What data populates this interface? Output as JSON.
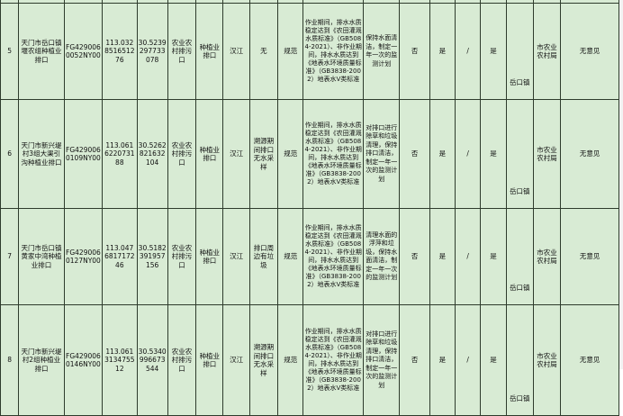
{
  "colors": {
    "cell_background": "#d8ebd4",
    "grid_border": "#2e3b2c",
    "text": "#101010"
  },
  "table": {
    "description_of_columns": [
      {
        "key": "seq"
      },
      {
        "key": "outfall-name"
      },
      {
        "key": "outfall-code"
      },
      {
        "key": "longitude"
      },
      {
        "key": "latitude"
      },
      {
        "key": "outfall-type"
      },
      {
        "key": "outfall-category"
      },
      {
        "key": "receiving-water"
      },
      {
        "key": "issue-found"
      },
      {
        "key": "rectification-type"
      },
      {
        "key": "water-quality-requirement"
      },
      {
        "key": "rectification-measure"
      },
      {
        "key": "flag-no"
      },
      {
        "key": "flag-yes-1"
      },
      {
        "key": "slash"
      },
      {
        "key": "flag-yes-2"
      },
      {
        "key": "town"
      },
      {
        "key": "department"
      },
      {
        "key": "opinion"
      }
    ],
    "rows": [
      {
        "cells": [
          "5",
          "天门市岳口镇堰农组种植业排口",
          "FG4290060052NY00",
          "113.032851651276",
          "30.5239297733078",
          "农业农村排污口",
          "种植业排口",
          "汉江",
          "无",
          "规范",
          "作业期间，排水水质稳定达到《农田灌溉水质标准》（GB5084-2021）、非作业期间，排水水质达到《地表水环境质量标准》（GB3838-2002）地表水V类标准",
          "保持水面清洁，制定一年一次的监测计划",
          "否",
          "是",
          "/",
          "是",
          "岳口镇",
          "市农业农村局",
          "无意见"
        ]
      },
      {
        "cells": [
          "6",
          "天门市新兴堤村3组大渠引沟种植业排口",
          "FG4290060109NY00",
          "113.061622073188",
          "30.5262821632104",
          "农业农村排污口",
          "种植业排口",
          "汉江",
          "溯源期间排口无水采样",
          "规范",
          "作业期间，排水水质稳定达到《农田灌溉水质标准》（GB5084-2021）、非作业期间，排水水质达到《地表水环境质量标准》（GB3838-2002）地表水V类标准",
          "对排口进行除草和垃圾清理，保持排口清洁，制定一年一次的监测计划",
          "否",
          "是",
          "/",
          "是",
          "岳口镇",
          "市农业农村局",
          "无意见"
        ]
      },
      {
        "cells": [
          "7",
          "天门市岳口镇黄家中湾种植业排口",
          "FG4290060127NY00",
          "113.047681717246",
          "30.5182391957156",
          "农业农村排污口",
          "种植业排口",
          "汉江",
          "排口周边有垃圾",
          "规范",
          "作业期间，排水水质稳定达到《农田灌溉水质标准》（GB5084-2021）、非作业期间，排水水质达到《地表水环境质量标准》（GB3838-2002）地表水V类标准",
          "清理水面的浮萍和垃圾，保持水面清洁，制定一年一次的监测计划",
          "否",
          "是",
          "/",
          "是",
          "岳口镇",
          "市农业农村局",
          "无意见"
        ]
      },
      {
        "cells": [
          "8",
          "天门市新兴堤村2组种植业排口",
          "FG4290060146NY00",
          "113.061313475512",
          "30.5340996673544",
          "农业农村排污口",
          "种植业排口",
          "汉江",
          "溯源期间排口无水采样",
          "规范",
          "作业期间，排水水质稳定达到《农田灌溉水质标准》（GB5084-2021）、非作业期间，排水水质达到《地表水环境质量标准》（GB3838-2002）地表水V类标准",
          "对排口进行除草和垃圾清理，保持排口清洁，制定一年一次的监测计划",
          "否",
          "是",
          "/",
          "是",
          "岳口镇",
          "市农业农村局",
          "无意见"
        ]
      }
    ]
  }
}
